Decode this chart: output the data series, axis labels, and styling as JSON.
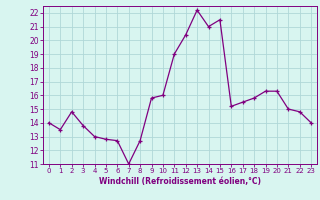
{
  "x": [
    0,
    1,
    2,
    3,
    4,
    5,
    6,
    7,
    8,
    9,
    10,
    11,
    12,
    13,
    14,
    15,
    16,
    17,
    18,
    19,
    20,
    21,
    22,
    23
  ],
  "y": [
    14,
    13.5,
    14.8,
    13.8,
    13,
    12.8,
    12.7,
    11.0,
    12.7,
    15.8,
    16.0,
    19.0,
    20.4,
    22.2,
    21.0,
    21.5,
    15.2,
    15.5,
    15.8,
    16.3,
    16.3,
    15.0,
    14.8,
    14.0
  ],
  "line_color": "#800080",
  "marker": "+",
  "bg_color": "#d8f5f0",
  "grid_color": "#b0d8d8",
  "xlabel": "Windchill (Refroidissement éolien,°C)",
  "ylim": [
    11,
    22.5
  ],
  "xlim": [
    -0.5,
    23.5
  ],
  "yticks": [
    11,
    12,
    13,
    14,
    15,
    16,
    17,
    18,
    19,
    20,
    21,
    22
  ],
  "xticks": [
    0,
    1,
    2,
    3,
    4,
    5,
    6,
    7,
    8,
    9,
    10,
    11,
    12,
    13,
    14,
    15,
    16,
    17,
    18,
    19,
    20,
    21,
    22,
    23
  ],
  "tick_color": "#800080",
  "label_color": "#800080",
  "spine_color": "#800080"
}
